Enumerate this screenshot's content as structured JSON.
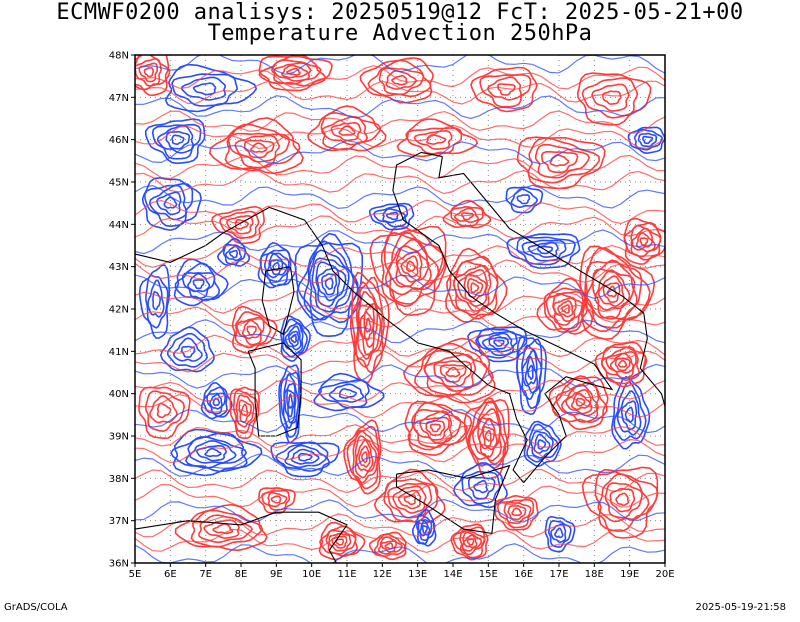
{
  "title": {
    "line1": "ECMWF0200 analisys: 20250519@12 FcT: 2025-05-21+00",
    "line2": "Temperature Advection 250hPa"
  },
  "map": {
    "lon_labels": [
      "5E",
      "6E",
      "7E",
      "8E",
      "9E",
      "10E",
      "11E",
      "12E",
      "13E",
      "14E",
      "15E",
      "16E",
      "17E",
      "18E",
      "19E",
      "20E"
    ],
    "lat_labels": [
      "48N",
      "47N",
      "46N",
      "45N",
      "44N",
      "43N",
      "42N",
      "41N",
      "40N",
      "39N",
      "38N",
      "37N",
      "36N"
    ],
    "lon_range": [
      5,
      20
    ],
    "lat_range": [
      36,
      48
    ],
    "grid": true,
    "colors": {
      "positive_contours": "#ff3b3b",
      "negative_contours": "#2a4cff",
      "coastline": "#000000",
      "grid": "#8a8a8a"
    }
  },
  "footer": {
    "left": "GrADS/COLA",
    "right": "2025-05-19-21:58"
  }
}
